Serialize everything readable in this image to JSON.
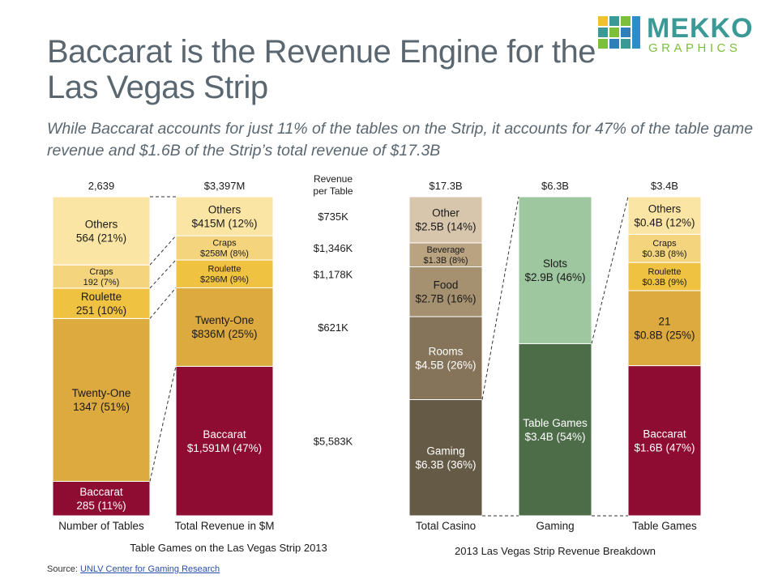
{
  "title": "Baccarat is the Revenue Engine for the Las Vegas Strip",
  "subtitle": "While Baccarat accounts for just 11% of the tables on the Strip, it accounts for 47% of the table game revenue and $1.6B of the Strip’s total revenue of $17.3B",
  "logo": {
    "word": "MEKKO",
    "sub": "GRAPHICS"
  },
  "source": {
    "prefix": "Source: ",
    "link": "UNLV Center for Gaming Research"
  },
  "chart_data": [
    {
      "type": "bar",
      "stacked": true,
      "title": "Table Games on the Las Vegas Strip 2013",
      "columns": [
        {
          "name": "Number of Tables",
          "total_label": "2,639",
          "total": 2639,
          "segments": [
            {
              "name": "Baccarat",
              "value": 285,
              "value_label": "285 (11%)",
              "color": "#8e0b32"
            },
            {
              "name": "Twenty-One",
              "value": 1347,
              "value_label": "1347 (51%)",
              "color": "#dcaa3e"
            },
            {
              "name": "Roulette",
              "value": 251,
              "value_label": "251 (10%)",
              "color": "#f0c242"
            },
            {
              "name": "Craps",
              "value": 192,
              "value_label": "192 (7%)",
              "color": "#f4d57e"
            },
            {
              "name": "Others",
              "value": 564,
              "value_label": "564 (21%)",
              "color": "#fbe5a4"
            }
          ]
        },
        {
          "name": "Total Revenue in $M",
          "total_label": "$3,397M",
          "total": 3397,
          "segments": [
            {
              "name": "Baccarat",
              "value": 1591,
              "value_label": "$1,591M (47%)",
              "color": "#8e0b32"
            },
            {
              "name": "Twenty-One",
              "value": 836,
              "value_label": "$836M (25%)",
              "color": "#dcaa3e"
            },
            {
              "name": "Roulette",
              "value": 296,
              "value_label": "$296M (9%)",
              "color": "#f0c242"
            },
            {
              "name": "Craps",
              "value": 258,
              "value_label": "$258M (8%)",
              "color": "#f4d57e"
            },
            {
              "name": "Others",
              "value": 415,
              "value_label": "$415M (12%)",
              "color": "#fbe5a4"
            }
          ]
        }
      ],
      "revenue_per_table": {
        "header": "Revenue per Table",
        "values": [
          {
            "name": "Baccarat",
            "label": "$5,583K"
          },
          {
            "name": "Twenty-One",
            "label": "$621K"
          },
          {
            "name": "Roulette",
            "label": "$1,178K"
          },
          {
            "name": "Craps",
            "label": "$1,346K"
          },
          {
            "name": "Others",
            "label": "$735K"
          }
        ]
      }
    },
    {
      "type": "bar",
      "stacked": true,
      "title": "2013 Las Vegas Strip Revenue Breakdown",
      "columns": [
        {
          "name": "Total Casino",
          "total_label": "$17.3B",
          "total": 17.3,
          "segments": [
            {
              "name": "Gaming",
              "value": 6.3,
              "value_label": "$6.3B (36%)",
              "color": "#655a45"
            },
            {
              "name": "Rooms",
              "value": 4.5,
              "value_label": "$4.5B (26%)",
              "color": "#85735a"
            },
            {
              "name": "Food",
              "value": 2.7,
              "value_label": "$2.7B (16%)",
              "color": "#a5906f"
            },
            {
              "name": "Beverage",
              "value": 1.3,
              "value_label": "$1.3B (8%)",
              "color": "#b9a380"
            },
            {
              "name": "Other",
              "value": 2.5,
              "value_label": "$2.5B (14%)",
              "color": "#d7c6ab"
            }
          ]
        },
        {
          "name": "Gaming",
          "total_label": "$6.3B",
          "total": 6.3,
          "segments": [
            {
              "name": "Table Games",
              "value": 3.4,
              "value_label": "$3.4B (54%)",
              "color": "#4d6c48"
            },
            {
              "name": "Slots",
              "value": 2.9,
              "value_label": "$2.9B (46%)",
              "color": "#9ec79f"
            }
          ]
        },
        {
          "name": "Table Games",
          "total_label": "$3.4B",
          "total": 3.4,
          "segments": [
            {
              "name": "Baccarat",
              "value": 1.6,
              "value_label": "$1.6B (47%)",
              "color": "#8e0b32"
            },
            {
              "name": "21",
              "value": 0.8,
              "value_label": "$0.8B (25%)",
              "color": "#dcaa3e"
            },
            {
              "name": "Roulette",
              "value": 0.3,
              "value_label": "$0.3B (9%)",
              "color": "#f0c242"
            },
            {
              "name": "Craps",
              "value": 0.3,
              "value_label": "$0.3B (8%)",
              "color": "#f4d57e"
            },
            {
              "name": "Others",
              "value": 0.4,
              "value_label": "$0.4B (12%)",
              "color": "#fbe5a4"
            }
          ]
        }
      ]
    }
  ]
}
